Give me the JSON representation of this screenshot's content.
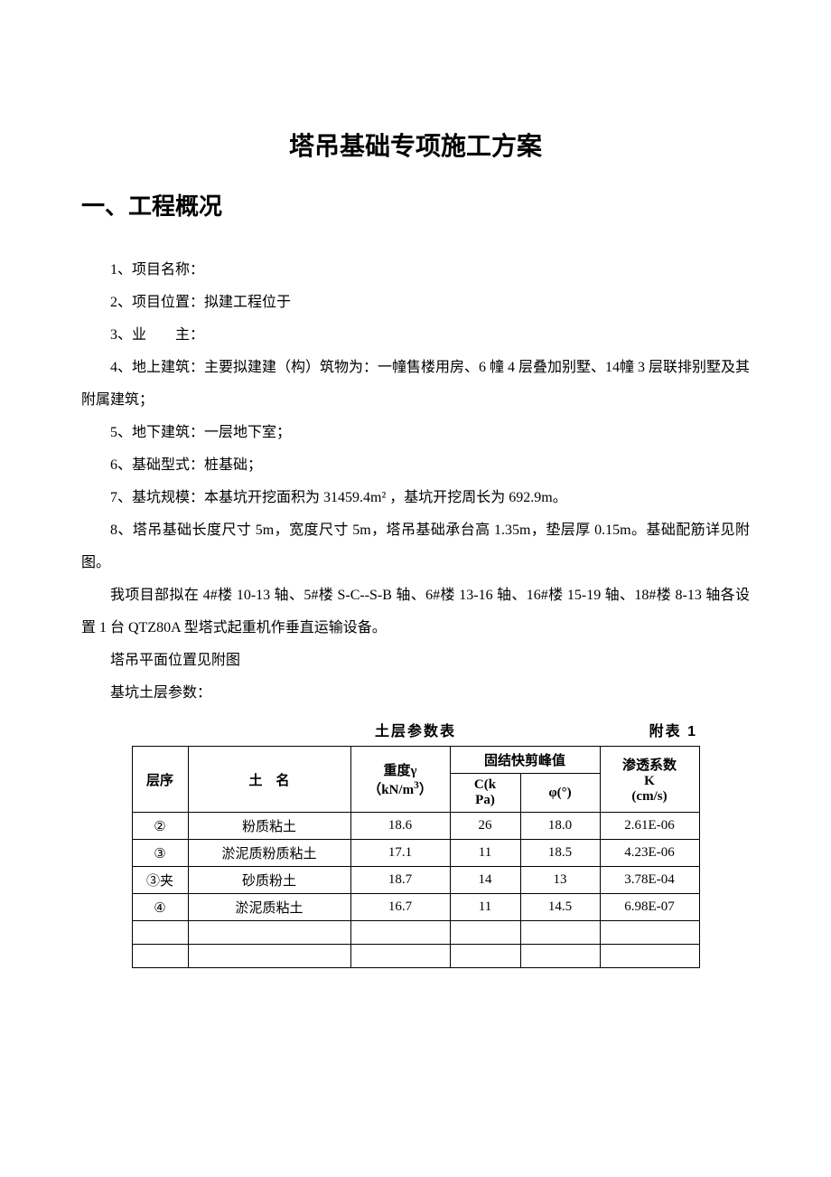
{
  "title": "塔吊基础专项施工方案",
  "section1_heading": "一、工程概况",
  "items": {
    "i1": "1、项目名称：",
    "i2": "2、项目位置：拟建工程位于",
    "i3": "3、业　　主：",
    "i4": "4、地上建筑：主要拟建建（构）筑物为：一幢售楼用房、6 幢 4 层叠加别墅、14幢 3 层联排别墅及其附属建筑；",
    "i5": "5、地下建筑：一层地下室；",
    "i6": "6、基础型式：桩基础；",
    "i7": "7、基坑规模：本基坑开挖面积为 31459.4m² ，基坑开挖周长为 692.9m。",
    "i8": "8、塔吊基础长度尺寸 5m，宽度尺寸 5m，塔吊基础承台高 1.35m，垫层厚 0.15m。基础配筋详见附图。",
    "p_layout": "我项目部拟在 4#楼 10-13 轴、5#楼 S-C--S-B 轴、6#楼 13-16 轴、16#楼 15-19 轴、18#楼 8-13 轴各设置 1 台 QTZ80A 型塔式起重机作垂直运输设备。",
    "p_plan": "塔吊平面位置见附图",
    "p_soil": "基坑土层参数："
  },
  "table": {
    "caption": "土层参数表",
    "appendix": "附表 1",
    "headers": {
      "layer": "层序",
      "name": "土　名",
      "gamma_label": "重度γ",
      "gamma_unit": "（kN/m",
      "gamma_sup": "3",
      "gamma_close": "）",
      "shear": "固结快剪峰值",
      "c_label": "C(k",
      "c_unit": "Pa)",
      "phi": "φ(°)",
      "k_label": "渗透系数",
      "k_sym": "K",
      "k_unit": "(cm/s)"
    },
    "rows": [
      {
        "layer": "②",
        "name": "粉质粘土",
        "gamma": "18.6",
        "c": "26",
        "phi": "18.0",
        "k": "2.61E-06"
      },
      {
        "layer": "③",
        "name": "淤泥质粉质粘土",
        "gamma": "17.1",
        "c": "11",
        "phi": "18.5",
        "k": "4.23E-06"
      },
      {
        "layer": "③夹",
        "name": "砂质粉土",
        "gamma": "18.7",
        "c": "14",
        "phi": "13",
        "k": "3.78E-04"
      },
      {
        "layer": "④",
        "name": "淤泥质粘土",
        "gamma": "16.7",
        "c": "11",
        "phi": "14.5",
        "k": "6.98E-07"
      }
    ],
    "empty_rows": 2
  },
  "colors": {
    "text": "#000000",
    "background": "#ffffff",
    "border": "#000000"
  }
}
